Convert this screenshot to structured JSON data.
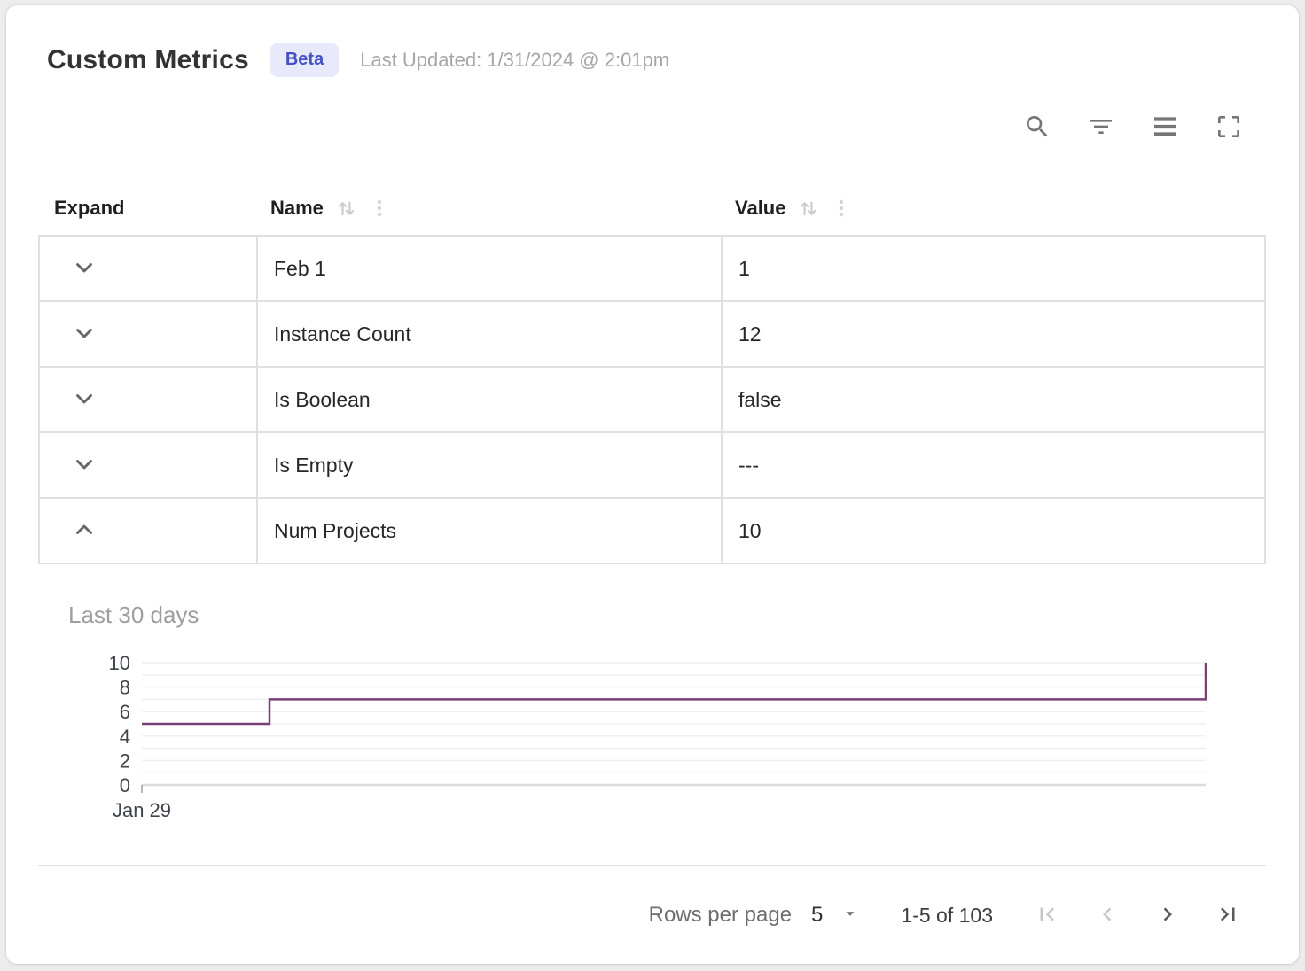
{
  "header": {
    "title": "Custom Metrics",
    "badge": "Beta",
    "last_updated": "Last Updated: 1/31/2024 @ 2:01pm"
  },
  "toolbar": {
    "icons": [
      "search",
      "filter",
      "density",
      "fullscreen"
    ]
  },
  "table": {
    "columns": [
      {
        "label": "Expand",
        "sortable": false
      },
      {
        "label": "Name",
        "sortable": true
      },
      {
        "label": "Value",
        "sortable": true
      }
    ],
    "rows": [
      {
        "name": "Feb 1",
        "value": "1",
        "expanded": false
      },
      {
        "name": "Instance Count",
        "value": "12",
        "expanded": false
      },
      {
        "name": "Is Boolean",
        "value": "false",
        "expanded": false
      },
      {
        "name": "Is Empty",
        "value": "---",
        "expanded": false
      },
      {
        "name": "Num Projects",
        "value": "10",
        "expanded": true
      }
    ]
  },
  "chart_data": {
    "type": "line",
    "step": "step-after",
    "title": "Last 30 days",
    "xlabel": "",
    "ylabel": "",
    "ylim": [
      0,
      10
    ],
    "yticks": [
      0,
      2,
      4,
      6,
      8,
      10
    ],
    "grid": true,
    "x_axis_start_label": "Jan 29",
    "series": [
      {
        "name": "Num Projects",
        "color": "#7b3f78",
        "points_frac": [
          [
            0,
            5
          ],
          [
            0.12,
            5
          ],
          [
            0.12,
            7
          ],
          [
            1,
            7
          ],
          [
            1,
            10
          ]
        ]
      }
    ]
  },
  "pagination": {
    "rows_per_page_label": "Rows per page",
    "rows_per_page_value": "5",
    "range_label": "1-5 of 103",
    "controls": {
      "first": {
        "disabled": true
      },
      "prev": {
        "disabled": true
      },
      "next": {
        "disabled": false
      },
      "last": {
        "disabled": false
      }
    }
  },
  "colors": {
    "badge_bg": "#e8eafb",
    "badge_text": "#4452c6",
    "chart_line": "#7b3f78",
    "table_border": "#e0e0e0",
    "text_primary": "#272727",
    "text_muted": "#a6a6a6",
    "icon_gray": "#757575"
  }
}
